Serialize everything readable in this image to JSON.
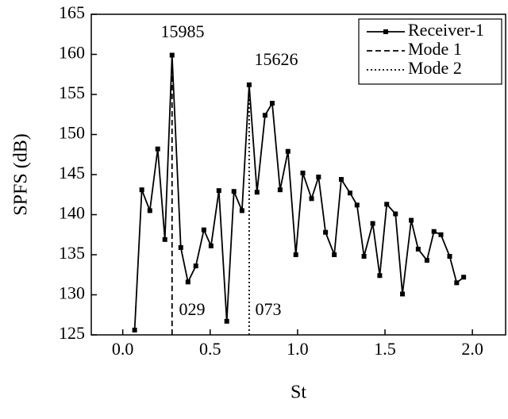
{
  "chart_data": {
    "type": "line",
    "xlabel": "St",
    "ylabel": "SPFS (dB)",
    "xlim": [
      -0.18,
      2.19
    ],
    "ylim": [
      125,
      165
    ],
    "xticks": [
      {
        "value": 0,
        "label": "0.0"
      },
      0.5,
      {
        "value": 1,
        "label": "1.0"
      },
      1.5,
      {
        "value": 2,
        "label": "2.0"
      }
    ],
    "yticks": [
      125,
      130,
      135,
      140,
      145,
      150,
      155,
      160,
      165
    ],
    "legend": "upper right",
    "series": [
      {
        "name": "Receiver-1",
        "color": "#000000",
        "dash": "solid",
        "marker": "square",
        "x": [
          0.068,
          0.109,
          0.155,
          0.2,
          0.241,
          0.282,
          0.332,
          0.373,
          0.418,
          0.464,
          0.505,
          0.55,
          0.595,
          0.636,
          0.682,
          0.723,
          0.768,
          0.814,
          0.855,
          0.9,
          0.945,
          0.99,
          1.03,
          1.08,
          1.12,
          1.16,
          1.21,
          1.25,
          1.3,
          1.34,
          1.38,
          1.43,
          1.47,
          1.51,
          1.56,
          1.6,
          1.65,
          1.69,
          1.74,
          1.78,
          1.82,
          1.87,
          1.91,
          1.95
        ],
        "values": [
          125.6,
          143.1,
          140.5,
          148.2,
          136.9,
          159.9,
          135.9,
          131.6,
          133.6,
          138.1,
          136.1,
          143.0,
          126.7,
          142.9,
          140.5,
          156.2,
          142.8,
          152.4,
          153.9,
          143.1,
          147.9,
          135.0,
          145.2,
          142.0,
          144.7,
          137.8,
          135.0,
          144.4,
          142.7,
          141.2,
          134.8,
          138.9,
          132.4,
          141.3,
          140.1,
          130.1,
          139.3,
          135.7,
          134.3,
          137.9,
          137.5,
          134.8,
          131.5,
          132.2
        ]
      },
      {
        "name": "Mode 1",
        "color": "#000000",
        "dash": "dashed",
        "x": [
          0.282,
          0.282
        ],
        "values": [
          125,
          159.9
        ]
      },
      {
        "name": "Mode 2",
        "color": "#000000",
        "dash": "dotted",
        "x": [
          0.723,
          0.723
        ],
        "values": [
          125,
          156.2
        ]
      }
    ],
    "annotations": [
      "15985",
      "15626",
      "029",
      "073"
    ]
  }
}
